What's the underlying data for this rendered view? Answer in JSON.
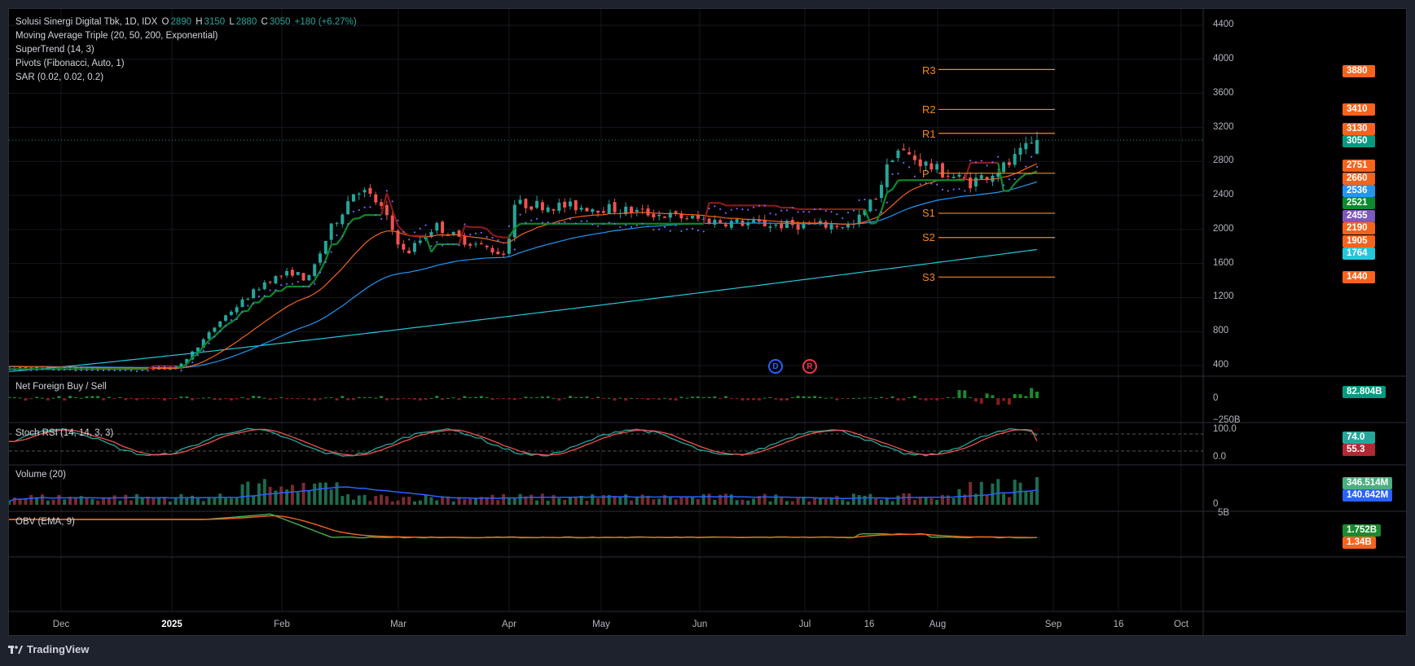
{
  "legend": {
    "symbol": "Solusi Sinergi Digital Tbk, 1D, IDX",
    "o_label": "O",
    "o": "2890",
    "h_label": "H",
    "h": "3150",
    "l_label": "L",
    "l": "2880",
    "c_label": "C",
    "c": "3050",
    "change": "+180 (+6.27%)",
    "indicators": [
      "Moving Average Triple (20, 50, 200, Exponential)",
      "SuperTrend (14, 3)",
      "Pivots (Fibonacci, Auto, 1)",
      "SAR (0.02, 0.02, 0.2)"
    ]
  },
  "price_axis": [
    "4400",
    "4000",
    "3600",
    "3200",
    "2800",
    "2400",
    "2000",
    "1600",
    "1200",
    "800",
    "400"
  ],
  "pivots": {
    "r3": "R3",
    "r2": "R2",
    "r1": "R1",
    "p": "P",
    "s1": "S1",
    "s2": "S2",
    "s3": "S3"
  },
  "badges": [
    {
      "text": "3880",
      "color": "#f7631b"
    },
    {
      "text": "3410",
      "color": "#f7631b"
    },
    {
      "text": "3130",
      "color": "#f7631b"
    },
    {
      "text": "3050",
      "color": "#089981"
    },
    {
      "text": "2751",
      "color": "#f7631b"
    },
    {
      "text": "2660",
      "color": "#f7631b"
    },
    {
      "text": "2536",
      "color": "#2196f3"
    },
    {
      "text": "2521",
      "color": "#0b8a2e"
    },
    {
      "text": "2455",
      "color": "#7e57c2"
    },
    {
      "text": "2190",
      "color": "#f7631b"
    },
    {
      "text": "1905",
      "color": "#f7631b"
    },
    {
      "text": "1764",
      "color": "#26c6da"
    },
    {
      "text": "1440",
      "color": "#f7631b"
    }
  ],
  "markers": {
    "left": "D",
    "right": "R"
  },
  "panes": {
    "foreign": {
      "title": "Net Foreign Buy / Sell",
      "axis_top": "0",
      "axis_bottom": "−250B",
      "badge": "82.804B"
    },
    "stoch": {
      "title": "Stoch RSI (14, 14, 3, 3)",
      "axis_top": "100.0",
      "axis_bottom": "0.0",
      "k": "74.0",
      "d": "55.3"
    },
    "volume": {
      "title": "Volume (20)",
      "axis_bottom": "0",
      "vol": "346.514M",
      "ma": "140.642M"
    },
    "obv": {
      "title": "OBV (EMA, 9)",
      "axis_top": "5B",
      "obv": "1.752B",
      "ema": "1.34B"
    }
  },
  "time_axis": [
    {
      "label": "Dec",
      "bold": false
    },
    {
      "label": "2025",
      "bold": true
    },
    {
      "label": "Feb",
      "bold": false
    },
    {
      "label": "Mar",
      "bold": false
    },
    {
      "label": "Apr",
      "bold": false
    },
    {
      "label": "May",
      "bold": false
    },
    {
      "label": "Jun",
      "bold": false
    },
    {
      "label": "Jul",
      "bold": false
    },
    {
      "label": "16",
      "bold": false
    },
    {
      "label": "Aug",
      "bold": false
    },
    {
      "label": "Sep",
      "bold": false
    },
    {
      "label": "16",
      "bold": false
    },
    {
      "label": "Oct",
      "bold": false
    }
  ],
  "footer": {
    "brand": "TradingView"
  },
  "chart_data": {
    "type": "candlestick",
    "title": "Solusi Sinergi Digital Tbk, 1D, IDX",
    "ylim": [
      200,
      4500
    ],
    "last": {
      "open": 2890,
      "high": 3150,
      "low": 2880,
      "close": 3050
    },
    "price_path": [
      {
        "x": "Nov-26",
        "close": 380
      },
      {
        "x": "Jan-10",
        "close": 360
      },
      {
        "x": "Jan-17",
        "close": 700
      },
      {
        "x": "Jan-22",
        "close": 950
      },
      {
        "x": "Feb-03",
        "close": 1400
      },
      {
        "x": "Feb-10",
        "close": 1500
      },
      {
        "x": "Feb-14",
        "close": 1400
      },
      {
        "x": "Feb-20",
        "close": 2000
      },
      {
        "x": "Feb-27",
        "close": 2500
      },
      {
        "x": "Mar-05",
        "close": 2300
      },
      {
        "x": "Mar-12",
        "close": 1700
      },
      {
        "x": "Mar-20",
        "close": 2050
      },
      {
        "x": "Mar-26",
        "close": 1900
      },
      {
        "x": "Apr-08",
        "close": 1700
      },
      {
        "x": "Apr-10",
        "close": 2300
      },
      {
        "x": "May-05",
        "close": 2250
      },
      {
        "x": "Jun-02",
        "close": 2100
      },
      {
        "x": "Jun-20",
        "close": 2050
      },
      {
        "x": "Jul-10",
        "close": 2050
      },
      {
        "x": "Jul-16",
        "close": 2400
      },
      {
        "x": "Jul-21",
        "close": 2950
      },
      {
        "x": "Aug-01",
        "close": 2700
      },
      {
        "x": "Aug-10",
        "close": 2550
      },
      {
        "x": "Aug-20",
        "close": 2750
      },
      {
        "x": "Aug-28",
        "close": 3050
      }
    ],
    "pivot_levels": {
      "R3": 3880,
      "R2": 3410,
      "R1": 3130,
      "P": 2660,
      "S1": 2190,
      "S2": 1905,
      "S3": 1440
    },
    "ma_values": {
      "ema20": 2751,
      "ema50": 2536,
      "ema200": 1764
    },
    "supertrend": 2521,
    "sar": 2455,
    "stoch_rsi": {
      "k": 74.0,
      "d": 55.3
    },
    "volume": {
      "last": "346.514M",
      "ma20": "140.642M"
    },
    "obv": {
      "value": "1.752B",
      "ema9": "1.34B"
    },
    "net_foreign_last": "82.804B"
  }
}
